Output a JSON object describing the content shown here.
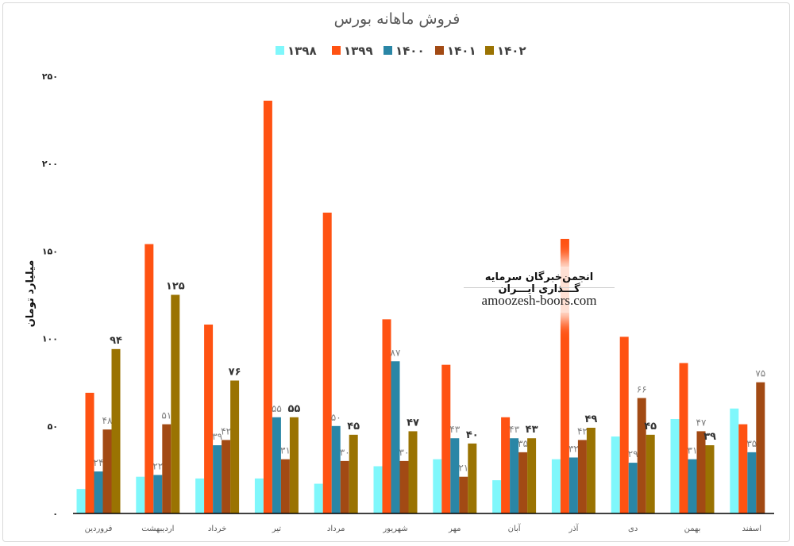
{
  "chart_data": {
    "type": "bar",
    "title": "فروش ماهانه بورس",
    "ylabel": "میلیارد تومان",
    "xlabel": "",
    "ylim": [
      0,
      250
    ],
    "yticks": [
      0,
      50,
      100,
      150,
      200,
      250
    ],
    "grid": false,
    "legend_position": "top-center",
    "categories": [
      "فروردین",
      "اردیبهشت",
      "خرداد",
      "تیر",
      "مرداد",
      "شهریور",
      "مهر",
      "آبان",
      "آذر",
      "دی",
      "بهمن",
      "اسفند"
    ],
    "series": [
      {
        "name": "۱۳۹۸",
        "color": "#7ff7fb",
        "labeled": false,
        "values": [
          14,
          21,
          20,
          20,
          17,
          27,
          31,
          19,
          31,
          44,
          54,
          60
        ]
      },
      {
        "name": "۱۳۹۹",
        "color": "#ff5212",
        "labeled": false,
        "values": [
          69,
          154,
          108,
          236,
          172,
          111,
          85,
          55,
          157,
          101,
          86,
          51
        ]
      },
      {
        "name": "۱۴۰۰",
        "color": "#2a86a6",
        "labeled": true,
        "label_style": "light",
        "values": [
          24,
          22,
          39,
          55,
          50,
          87,
          43,
          43,
          32,
          29,
          31,
          35
        ]
      },
      {
        "name": "۱۴۰۱",
        "color": "#a24a14",
        "labeled": true,
        "label_style": "light",
        "values": [
          48,
          51,
          42,
          31,
          30,
          30,
          21,
          35,
          42,
          66,
          47,
          75
        ]
      },
      {
        "name": "۱۴۰۲",
        "color": "#9a7302",
        "labeled": true,
        "label_style": "bold",
        "values": [
          94,
          125,
          76,
          55,
          45,
          47,
          40,
          43,
          49,
          45,
          39,
          null
        ]
      }
    ]
  },
  "watermark": {
    "title": "انجمن‌خبرگان سرمایه گـــذاری ایـــران",
    "url": "amoozesh-boors.com"
  }
}
